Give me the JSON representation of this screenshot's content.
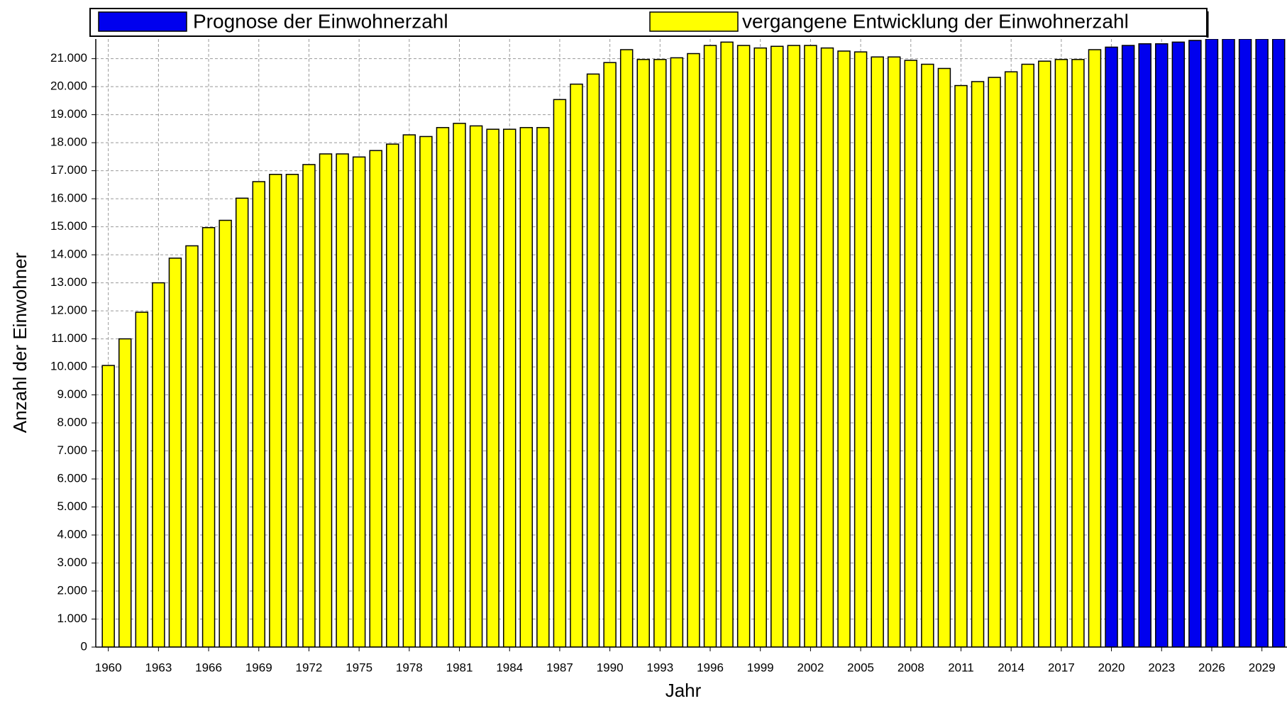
{
  "chart_data": {
    "type": "bar",
    "xlabel": "Jahr",
    "ylabel": "Anzahl der Einwohner",
    "x": [
      1960,
      1961,
      1962,
      1963,
      1964,
      1965,
      1966,
      1967,
      1968,
      1969,
      1970,
      1971,
      1972,
      1973,
      1974,
      1975,
      1976,
      1977,
      1978,
      1979,
      1980,
      1981,
      1982,
      1983,
      1984,
      1985,
      1986,
      1987,
      1988,
      1989,
      1990,
      1991,
      1992,
      1993,
      1994,
      1995,
      1996,
      1997,
      1998,
      1999,
      2000,
      2001,
      2002,
      2003,
      2004,
      2005,
      2006,
      2007,
      2008,
      2009,
      2010,
      2011,
      2012,
      2013,
      2014,
      2015,
      2016,
      2017,
      2018,
      2019,
      2020,
      2021,
      2022,
      2023,
      2024,
      2025,
      2026,
      2027,
      2028,
      2029,
      2030
    ],
    "series": [
      {
        "name": "Prognose der Einwohnerzahl",
        "color": "#0000ee",
        "values": [
          null,
          null,
          null,
          null,
          null,
          null,
          null,
          null,
          null,
          null,
          null,
          null,
          null,
          null,
          null,
          null,
          null,
          null,
          null,
          null,
          null,
          null,
          null,
          null,
          null,
          null,
          null,
          null,
          null,
          null,
          null,
          null,
          null,
          null,
          null,
          null,
          null,
          null,
          null,
          null,
          null,
          null,
          null,
          null,
          null,
          null,
          null,
          null,
          null,
          null,
          null,
          null,
          null,
          null,
          null,
          null,
          null,
          null,
          null,
          null,
          21410,
          21470,
          21530,
          21530,
          21590,
          21650,
          21700,
          21700,
          21700,
          21700,
          21700
        ]
      },
      {
        "name": "vergangene Entwicklung der Einwohnerzahl",
        "color": "#ffff00",
        "values": [
          10050,
          11000,
          11950,
          13000,
          13880,
          14320,
          14970,
          15230,
          16020,
          16610,
          16870,
          16870,
          17220,
          17600,
          17600,
          17490,
          17720,
          17950,
          18280,
          18220,
          18540,
          18690,
          18600,
          18480,
          18480,
          18540,
          18540,
          19540,
          20090,
          20450,
          20860,
          21320,
          20970,
          20970,
          21030,
          21180,
          21470,
          21590,
          21470,
          21380,
          21440,
          21470,
          21470,
          21380,
          21270,
          21240,
          21060,
          21060,
          20940,
          20800,
          20650,
          20040,
          20180,
          20330,
          20530,
          20800,
          20910,
          20970,
          20970,
          21320,
          null,
          null,
          null,
          null,
          null,
          null,
          null,
          null,
          null,
          null,
          null
        ]
      }
    ],
    "xlim": [
      1959.25,
      2030.5
    ],
    "xticks": [
      1960,
      1963,
      1966,
      1969,
      1972,
      1975,
      1978,
      1981,
      1984,
      1987,
      1990,
      1993,
      1996,
      1999,
      2002,
      2005,
      2008,
      2011,
      2014,
      2017,
      2020,
      2023,
      2026,
      2029
    ],
    "ylim": [
      0,
      21700
    ],
    "yticks": [
      0,
      {
        "value": 1000,
        "label": "1.000"
      },
      {
        "value": 2000,
        "label": "2.000"
      },
      {
        "value": 3000,
        "label": "3.000"
      },
      {
        "value": 4000,
        "label": "4.000"
      },
      {
        "value": 5000,
        "label": "5.000"
      },
      {
        "value": 6000,
        "label": "6.000"
      },
      {
        "value": 7000,
        "label": "7.000"
      },
      {
        "value": 8000,
        "label": "8.000"
      },
      {
        "value": 9000,
        "label": "9.000"
      },
      {
        "value": 10000,
        "label": "10.000"
      },
      {
        "value": 11000,
        "label": "11.000"
      },
      {
        "value": 12000,
        "label": "12.000"
      },
      {
        "value": 13000,
        "label": "13.000"
      },
      {
        "value": 14000,
        "label": "14.000"
      },
      {
        "value": 15000,
        "label": "15.000"
      },
      {
        "value": 16000,
        "label": "16.000"
      },
      {
        "value": 17000,
        "label": "17.000"
      },
      {
        "value": 18000,
        "label": "18.000"
      },
      {
        "value": 19000,
        "label": "19.000"
      },
      {
        "value": 20000,
        "label": "20.000"
      },
      {
        "value": 21000,
        "label": "21.000"
      }
    ],
    "grid": true
  }
}
